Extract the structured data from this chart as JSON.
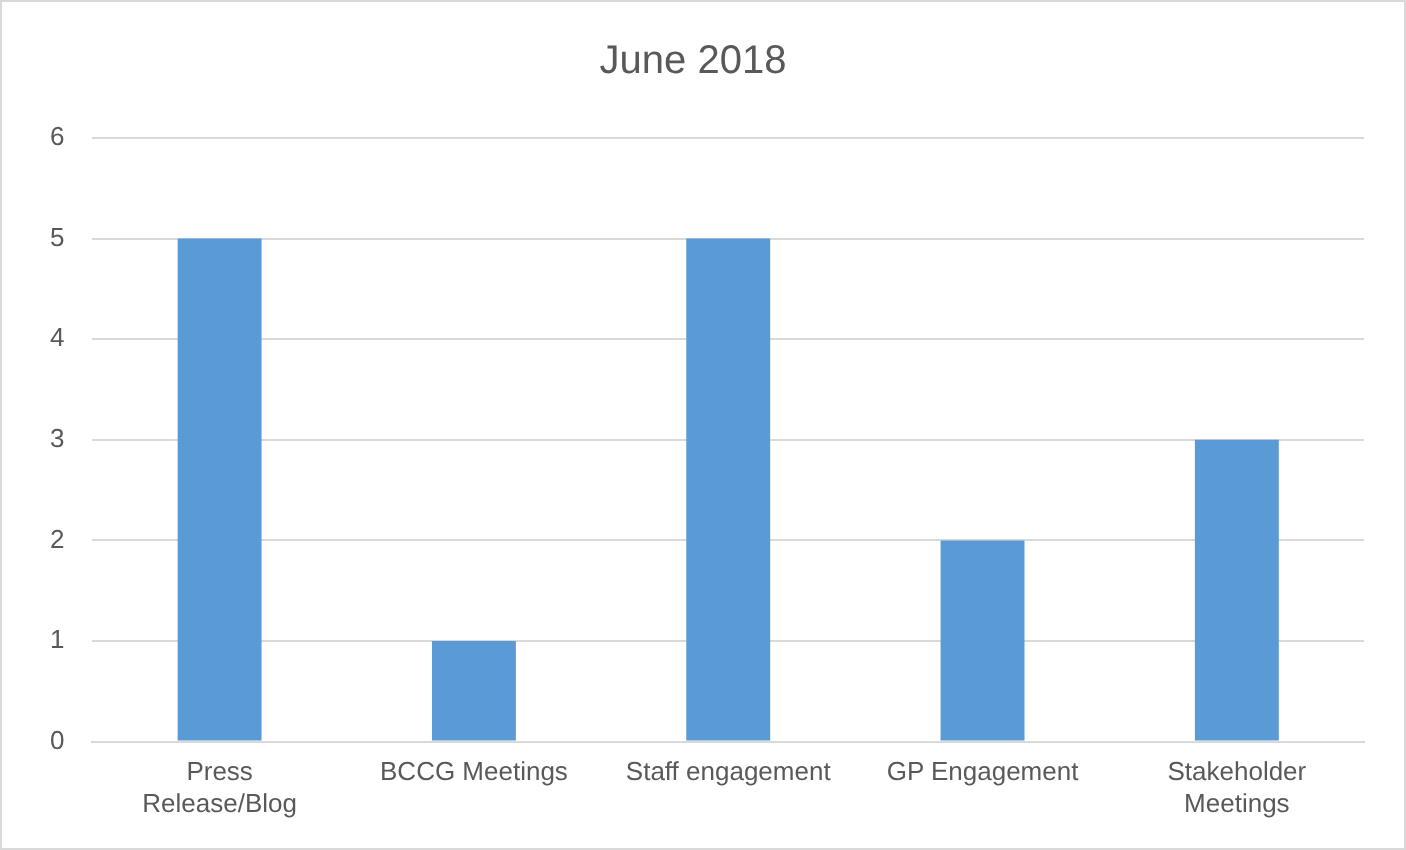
{
  "chart_data": {
    "type": "bar",
    "title": "June 2018",
    "categories": [
      "Press Release/Blog",
      "BCCG Meetings",
      "Staff engagement",
      "GP Engagement",
      "Stakeholder Meetings"
    ],
    "values": [
      5,
      1,
      5,
      2,
      3
    ],
    "color": "#5b9bd5",
    "ylim": [
      0,
      6
    ],
    "yticks": [
      0,
      1,
      2,
      3,
      4,
      5,
      6
    ],
    "grid": "y",
    "legend": false
  }
}
